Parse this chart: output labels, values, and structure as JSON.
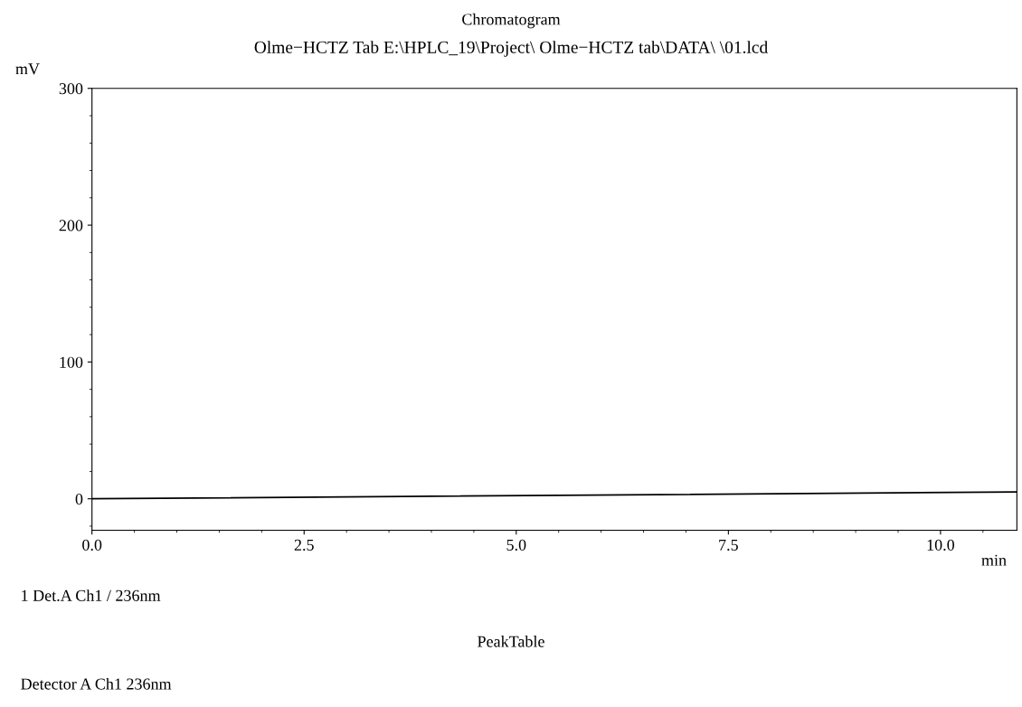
{
  "chart_data": {
    "type": "line",
    "title": "Chromatogram",
    "subtitle": "Olme−HCTZ Tab E:\\HPLC_19\\Project\\ Olme−HCTZ tab\\DATA\\ \\01.lcd",
    "xlabel": "min",
    "ylabel": "mV",
    "x": [
      0,
      10.9
    ],
    "series": [
      {
        "color": "#000000",
        "values": [
          0,
          5
        ]
      }
    ],
    "xlim": [
      0,
      10.9
    ],
    "xticks": [
      {
        "value": 0,
        "label": "0.0"
      },
      2.5,
      {
        "value": 5,
        "label": "5.0"
      },
      7.5,
      {
        "value": 10,
        "label": "10.0"
      }
    ],
    "ylim": [
      -23,
      300
    ],
    "yticks": [
      0,
      100,
      200,
      300
    ],
    "grid": false,
    "legend": false,
    "marker": "none",
    "line_style": "solid",
    "annotations": [
      "1 Det.A Ch1 / 236nm",
      "PeakTable",
      "Detector A Ch1 236nm"
    ]
  }
}
